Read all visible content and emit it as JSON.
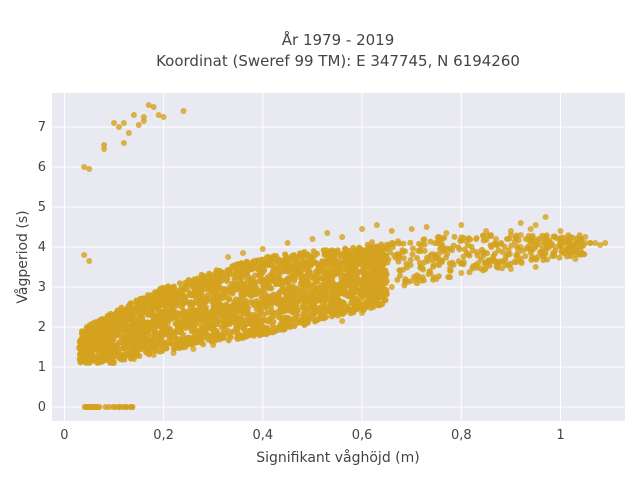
{
  "chart_data": {
    "type": "scatter",
    "title_lines": [
      "År 1979 - 2019",
      "Koordinat (Sweref 99 TM): E 347745, N 6194260"
    ],
    "xlabel": "Signifikant våghöjd (m)",
    "ylabel": "Vågperiod (s)",
    "xlim": [
      -0.025,
      1.13
    ],
    "ylim": [
      -0.35,
      7.85
    ],
    "x_ticks": [
      0,
      0.2,
      0.4,
      0.6,
      0.8,
      1
    ],
    "x_tick_labels": [
      "0",
      "0,2",
      "0,4",
      "0,6",
      "0,8",
      "1"
    ],
    "y_ticks": [
      0,
      1,
      2,
      3,
      4,
      5,
      6,
      7
    ],
    "y_tick_labels": [
      "0",
      "1",
      "2",
      "3",
      "4",
      "5",
      "6",
      "7"
    ],
    "grid": true,
    "legend": "none",
    "marker_color": "#D4A21E",
    "background_color": "#E9E9F1",
    "dense_band": {
      "x_range": [
        0.03,
        0.65
      ],
      "lower_y": [
        [
          0.03,
          1.1
        ],
        [
          0.1,
          1.1
        ],
        [
          0.2,
          1.4
        ],
        [
          0.3,
          1.6
        ],
        [
          0.4,
          1.8
        ],
        [
          0.5,
          2.1
        ],
        [
          0.6,
          2.4
        ],
        [
          0.65,
          2.6
        ]
      ],
      "upper_y": [
        [
          0.03,
          1.9
        ],
        [
          0.1,
          2.4
        ],
        [
          0.2,
          3.0
        ],
        [
          0.3,
          3.4
        ],
        [
          0.4,
          3.75
        ],
        [
          0.5,
          3.9
        ],
        [
          0.6,
          4.0
        ],
        [
          0.65,
          4.05
        ]
      ]
    },
    "tail_band": {
      "x_range": [
        0.6,
        1.05
      ],
      "lower_y": [
        [
          0.6,
          2.8
        ],
        [
          0.8,
          3.3
        ],
        [
          1.0,
          3.7
        ],
        [
          1.05,
          3.8
        ]
      ],
      "upper_y": [
        [
          0.6,
          4.1
        ],
        [
          0.8,
          4.3
        ],
        [
          1.0,
          4.3
        ],
        [
          1.05,
          4.3
        ]
      ]
    },
    "points": [
      [
        0.04,
        6.0
      ],
      [
        0.05,
        5.95
      ],
      [
        0.08,
        6.55
      ],
      [
        0.08,
        6.45
      ],
      [
        0.1,
        7.1
      ],
      [
        0.11,
        7.0
      ],
      [
        0.12,
        7.1
      ],
      [
        0.12,
        6.6
      ],
      [
        0.13,
        6.85
      ],
      [
        0.14,
        7.3
      ],
      [
        0.15,
        7.05
      ],
      [
        0.16,
        7.25
      ],
      [
        0.16,
        7.15
      ],
      [
        0.17,
        7.55
      ],
      [
        0.18,
        7.5
      ],
      [
        0.19,
        7.3
      ],
      [
        0.2,
        7.25
      ],
      [
        0.24,
        7.4
      ],
      [
        0.04,
        3.8
      ],
      [
        0.05,
        3.65
      ],
      [
        1.09,
        4.1
      ],
      [
        1.05,
        4.1
      ],
      [
        1.04,
        3.95
      ],
      [
        1.01,
        4.1
      ],
      [
        1.0,
        4.4
      ],
      [
        0.98,
        4.1
      ],
      [
        0.96,
        4.05
      ],
      [
        0.92,
        4.0
      ],
      [
        1.02,
        4.25
      ],
      [
        1.06,
        4.1
      ],
      [
        1.03,
        4.05
      ],
      [
        1.07,
        4.1
      ],
      [
        1.04,
        4.2
      ],
      [
        1.0,
        4.05
      ],
      [
        0.97,
        4.2
      ],
      [
        0.92,
        4.3
      ],
      [
        1.03,
        3.7
      ],
      [
        0.94,
        3.85
      ],
      [
        0.97,
        4.75
      ],
      [
        0.97,
        4.1
      ],
      [
        0.9,
        4.3
      ],
      [
        0.93,
        4.2
      ],
      [
        0.95,
        4.55
      ],
      [
        0.88,
        4.1
      ],
      [
        0.87,
        4.2
      ],
      [
        0.86,
        4.3
      ],
      [
        0.83,
        4.2
      ],
      [
        0.81,
        4.15
      ],
      [
        0.97,
        4.1
      ],
      [
        1.06,
        4.1
      ],
      [
        1.05,
        4.25
      ],
      [
        1.03,
        4.1
      ],
      [
        0.99,
        4.0
      ],
      [
        1.08,
        4.05
      ],
      [
        0.92,
        4.6
      ],
      [
        0.94,
        4.45
      ],
      [
        0.9,
        4.4
      ],
      [
        0.85,
        4.4
      ],
      [
        0.8,
        4.55
      ],
      [
        0.77,
        4.35
      ],
      [
        0.73,
        4.5
      ],
      [
        0.7,
        4.45
      ],
      [
        0.66,
        4.4
      ],
      [
        0.63,
        4.55
      ],
      [
        0.6,
        4.45
      ],
      [
        0.56,
        4.25
      ],
      [
        0.53,
        4.35
      ],
      [
        0.5,
        4.2
      ],
      [
        0.45,
        4.1
      ],
      [
        0.4,
        3.95
      ],
      [
        0.36,
        3.85
      ],
      [
        0.33,
        3.75
      ],
      [
        0.95,
        3.5
      ],
      [
        0.9,
        3.45
      ],
      [
        0.85,
        3.5
      ],
      [
        0.8,
        3.35
      ],
      [
        0.75,
        3.2
      ],
      [
        0.7,
        3.15
      ],
      [
        0.6,
        2.35
      ],
      [
        0.57,
        2.45
      ],
      [
        0.55,
        2.6
      ],
      [
        0.56,
        2.15
      ],
      [
        0.53,
        2.4
      ],
      [
        0.5,
        2.3
      ],
      [
        0.47,
        2.1
      ],
      [
        0.45,
        2.0
      ],
      [
        0.42,
        1.95
      ],
      [
        0.4,
        1.9
      ],
      [
        0.38,
        1.85
      ],
      [
        0.35,
        1.7
      ],
      [
        0.3,
        1.55
      ],
      [
        0.26,
        1.45
      ],
      [
        0.22,
        1.35
      ],
      [
        0.18,
        1.3
      ],
      [
        0.14,
        1.2
      ],
      [
        0.1,
        1.1
      ],
      [
        0.62,
        2.95
      ],
      [
        0.64,
        2.8
      ],
      [
        0.66,
        3.0
      ],
      [
        0.6,
        2.65
      ],
      [
        0.48,
        2.75
      ],
      [
        0.52,
        2.6
      ]
    ],
    "zero_points_x_range": [
      0.04,
      0.14
    ],
    "zero_points_y": 0
  }
}
